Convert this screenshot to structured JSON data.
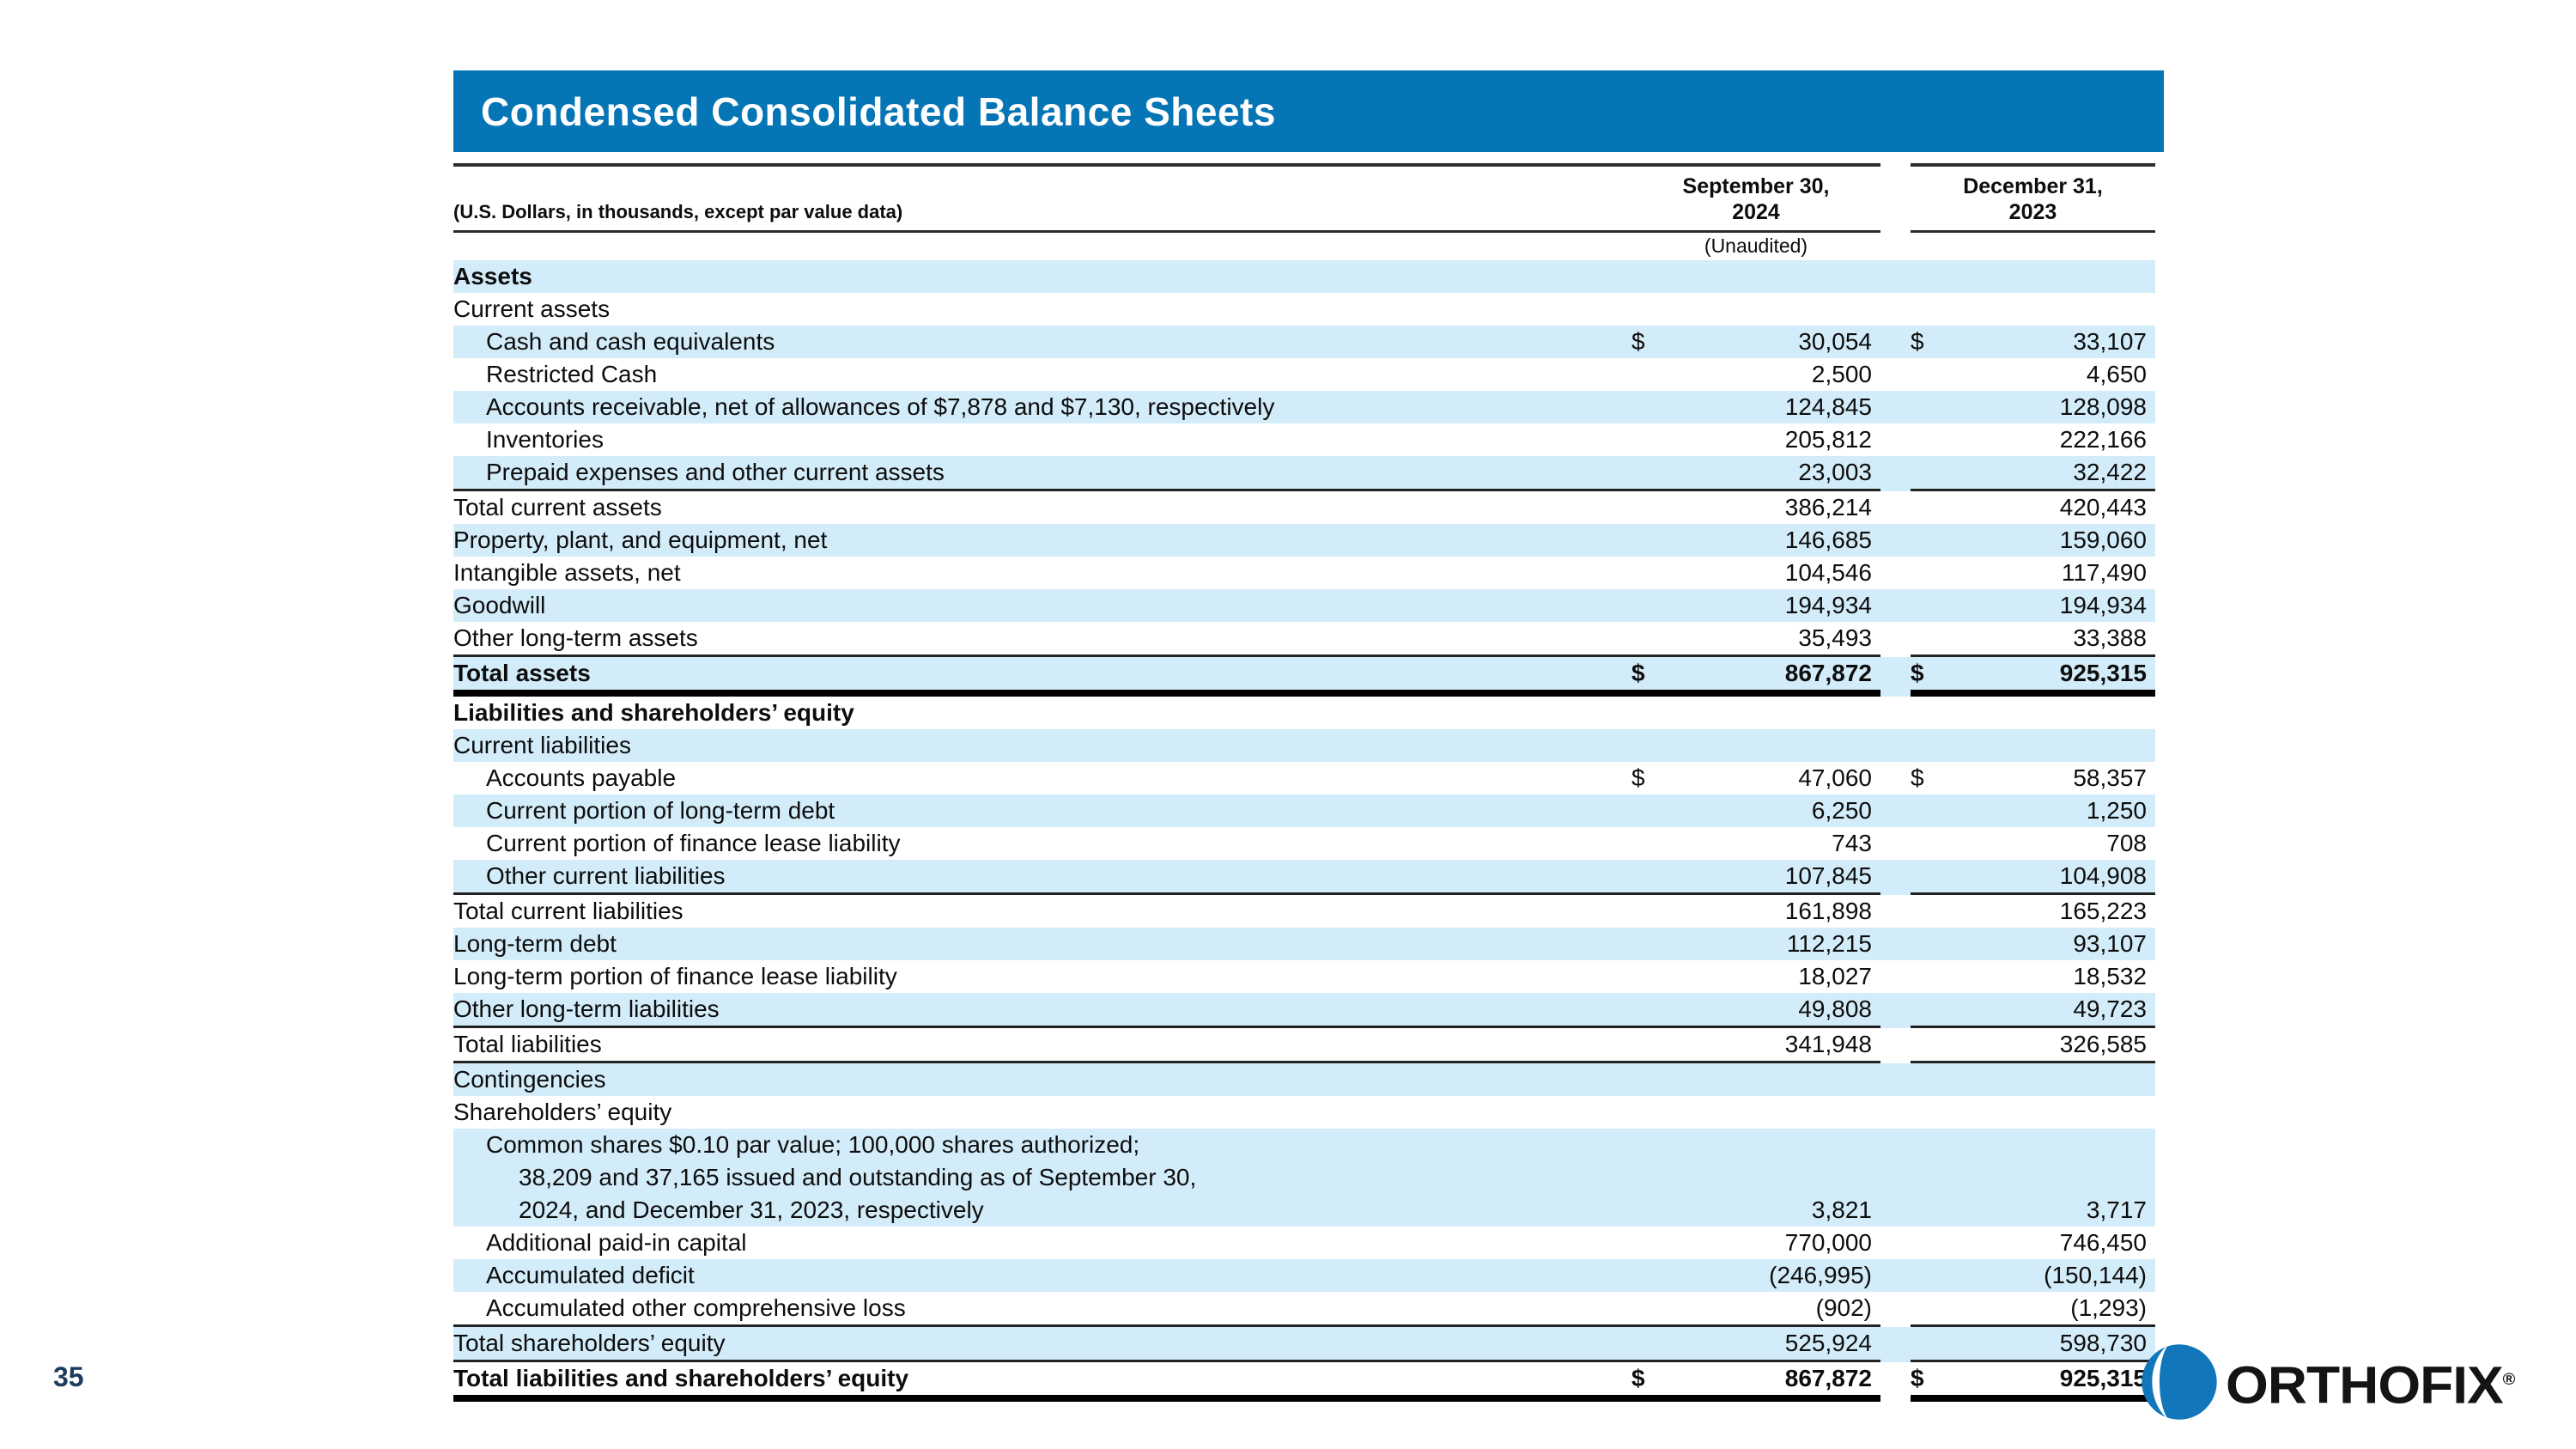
{
  "page": {
    "number": "35"
  },
  "banner": {
    "title": "Condensed Consolidated Balance Sheets"
  },
  "header": {
    "note": "(U.S. Dollars, in thousands, except par value data)",
    "col1": {
      "line1": "September 30,",
      "line2": "2024",
      "sub": "(Unaudited)"
    },
    "col2": {
      "line1": "December 31,",
      "line2": "2023"
    }
  },
  "colors": {
    "banner_blue": "#0575b5",
    "row_highlight": "#d3ecf9",
    "page_number_navy": "#1d3c5e",
    "logo_blue": "#1176ba"
  },
  "logo": {
    "text": "ORTHOFIX",
    "reg": "®"
  },
  "table": {
    "rows": [
      {
        "label": "Assets",
        "indent": 0,
        "bold": true,
        "hl": true,
        "d1": "",
        "v1": "",
        "d2": "",
        "v2": "",
        "rule": "none"
      },
      {
        "label": "Current assets",
        "indent": 0,
        "bold": false,
        "hl": false,
        "d1": "",
        "v1": "",
        "d2": "",
        "v2": "",
        "rule": "none"
      },
      {
        "label": "Cash and cash equivalents",
        "indent": 1,
        "bold": false,
        "hl": true,
        "d1": "$",
        "v1": "30,054",
        "d2": "$",
        "v2": "33,107",
        "rule": "none"
      },
      {
        "label": "Restricted Cash",
        "indent": 1,
        "bold": false,
        "hl": false,
        "d1": "",
        "v1": "2,500",
        "d2": "",
        "v2": "4,650",
        "rule": "none"
      },
      {
        "label": "Accounts receivable, net of allowances of $7,878 and $7,130, respectively",
        "indent": 1,
        "bold": false,
        "hl": true,
        "d1": "",
        "v1": "124,845",
        "d2": "",
        "v2": "128,098",
        "rule": "none"
      },
      {
        "label": "Inventories",
        "indent": 1,
        "bold": false,
        "hl": false,
        "d1": "",
        "v1": "205,812",
        "d2": "",
        "v2": "222,166",
        "rule": "none"
      },
      {
        "label": "Prepaid expenses and other current assets",
        "indent": 1,
        "bold": false,
        "hl": true,
        "d1": "",
        "v1": "23,003",
        "d2": "",
        "v2": "32,422",
        "rule": "thin"
      },
      {
        "label": "Total current assets",
        "indent": 0,
        "bold": false,
        "hl": false,
        "d1": "",
        "v1": "386,214",
        "d2": "",
        "v2": "420,443",
        "rule": "none"
      },
      {
        "label": "Property, plant, and equipment, net",
        "indent": 0,
        "bold": false,
        "hl": true,
        "d1": "",
        "v1": "146,685",
        "d2": "",
        "v2": "159,060",
        "rule": "none"
      },
      {
        "label": "Intangible assets, net",
        "indent": 0,
        "bold": false,
        "hl": false,
        "d1": "",
        "v1": "104,546",
        "d2": "",
        "v2": "117,490",
        "rule": "none"
      },
      {
        "label": "Goodwill",
        "indent": 0,
        "bold": false,
        "hl": true,
        "d1": "",
        "v1": "194,934",
        "d2": "",
        "v2": "194,934",
        "rule": "none"
      },
      {
        "label": "Other long-term assets",
        "indent": 0,
        "bold": false,
        "hl": false,
        "d1": "",
        "v1": "35,493",
        "d2": "",
        "v2": "33,388",
        "rule": "thin"
      },
      {
        "label": "Total assets",
        "indent": 0,
        "bold": true,
        "hl": true,
        "d1": "$",
        "v1": "867,872",
        "d2": "$",
        "v2": "925,315",
        "rule": "thick"
      },
      {
        "label": "Liabilities and shareholders’ equity",
        "indent": 0,
        "bold": true,
        "hl": false,
        "d1": "",
        "v1": "",
        "d2": "",
        "v2": "",
        "rule": "none"
      },
      {
        "label": "Current liabilities",
        "indent": 0,
        "bold": false,
        "hl": true,
        "d1": "",
        "v1": "",
        "d2": "",
        "v2": "",
        "rule": "none"
      },
      {
        "label": "Accounts payable",
        "indent": 1,
        "bold": false,
        "hl": false,
        "d1": "$",
        "v1": "47,060",
        "d2": "$",
        "v2": "58,357",
        "rule": "none"
      },
      {
        "label": "Current portion of long-term debt",
        "indent": 1,
        "bold": false,
        "hl": true,
        "d1": "",
        "v1": "6,250",
        "d2": "",
        "v2": "1,250",
        "rule": "none"
      },
      {
        "label": "Current portion of finance lease liability",
        "indent": 1,
        "bold": false,
        "hl": false,
        "d1": "",
        "v1": "743",
        "d2": "",
        "v2": "708",
        "rule": "none"
      },
      {
        "label": "Other current liabilities",
        "indent": 1,
        "bold": false,
        "hl": true,
        "d1": "",
        "v1": "107,845",
        "d2": "",
        "v2": "104,908",
        "rule": "thin"
      },
      {
        "label": "Total current liabilities",
        "indent": 0,
        "bold": false,
        "hl": false,
        "d1": "",
        "v1": "161,898",
        "d2": "",
        "v2": "165,223",
        "rule": "none"
      },
      {
        "label": "Long-term debt",
        "indent": 0,
        "bold": false,
        "hl": true,
        "d1": "",
        "v1": "112,215",
        "d2": "",
        "v2": "93,107",
        "rule": "none"
      },
      {
        "label": "Long-term portion of finance lease liability",
        "indent": 0,
        "bold": false,
        "hl": false,
        "d1": "",
        "v1": "18,027",
        "d2": "",
        "v2": "18,532",
        "rule": "none"
      },
      {
        "label": "Other long-term liabilities",
        "indent": 0,
        "bold": false,
        "hl": true,
        "d1": "",
        "v1": "49,808",
        "d2": "",
        "v2": "49,723",
        "rule": "thin"
      },
      {
        "label": "Total liabilities",
        "indent": 0,
        "bold": false,
        "hl": false,
        "d1": "",
        "v1": "341,948",
        "d2": "",
        "v2": "326,585",
        "rule": "thin"
      },
      {
        "label": "Contingencies",
        "indent": 0,
        "bold": false,
        "hl": true,
        "d1": "",
        "v1": "",
        "d2": "",
        "v2": "",
        "rule": "none"
      },
      {
        "label": "Shareholders’ equity",
        "indent": 0,
        "bold": false,
        "hl": false,
        "d1": "",
        "v1": "",
        "d2": "",
        "v2": "",
        "rule": "none"
      },
      {
        "label": "Common shares $0.10 par value; 100,000 shares authorized;",
        "indent": 1,
        "bold": false,
        "hl": true,
        "d1": "",
        "v1": "",
        "d2": "",
        "v2": "",
        "rule": "none"
      },
      {
        "label": "38,209 and 37,165 issued and outstanding as of September 30,",
        "indent": 2,
        "bold": false,
        "hl": true,
        "d1": "",
        "v1": "",
        "d2": "",
        "v2": "",
        "rule": "none"
      },
      {
        "label": "2024, and December 31, 2023, respectively",
        "indent": 2,
        "bold": false,
        "hl": true,
        "d1": "",
        "v1": "3,821",
        "d2": "",
        "v2": "3,717",
        "rule": "none"
      },
      {
        "label": "Additional paid-in capital",
        "indent": 1,
        "bold": false,
        "hl": false,
        "d1": "",
        "v1": "770,000",
        "d2": "",
        "v2": "746,450",
        "rule": "none"
      },
      {
        "label": "Accumulated deficit",
        "indent": 1,
        "bold": false,
        "hl": true,
        "d1": "",
        "v1": "(246,995)",
        "d2": "",
        "v2": "(150,144)",
        "rule": "none"
      },
      {
        "label": "Accumulated other comprehensive loss",
        "indent": 1,
        "bold": false,
        "hl": false,
        "d1": "",
        "v1": "(902)",
        "d2": "",
        "v2": "(1,293)",
        "rule": "thin"
      },
      {
        "label": "Total shareholders’ equity",
        "indent": 0,
        "bold": false,
        "hl": true,
        "d1": "",
        "v1": "525,924",
        "d2": "",
        "v2": "598,730",
        "rule": "thin"
      },
      {
        "label": "Total liabilities and shareholders’ equity",
        "indent": 0,
        "bold": true,
        "hl": false,
        "d1": "$",
        "v1": "867,872",
        "d2": "$",
        "v2": "925,315",
        "rule": "thick"
      }
    ]
  }
}
